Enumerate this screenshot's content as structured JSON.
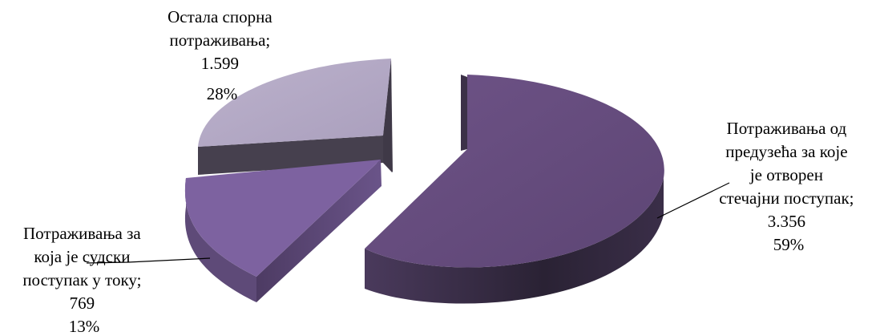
{
  "chart_data": {
    "type": "pie",
    "title": "",
    "slices": [
      {
        "label_lines": [
          "Потраживања од",
          "предузећа за које",
          "је отворен",
          "стечајни поступак;"
        ],
        "value": 3356,
        "value_text": "3.356",
        "percent_text": "59%",
        "color": "#6a4e82"
      },
      {
        "label_lines": [
          "Потраживања за",
          "која је судски",
          "поступак у току;"
        ],
        "value": 769,
        "value_text": "769",
        "percent_text": "13%",
        "color": "#7d62a0"
      },
      {
        "label_lines": [
          "Остала спорна",
          "потраживања;"
        ],
        "value": 1599,
        "value_text": "1.599",
        "percent_text": "28%",
        "color": "#b5aac6"
      }
    ]
  }
}
